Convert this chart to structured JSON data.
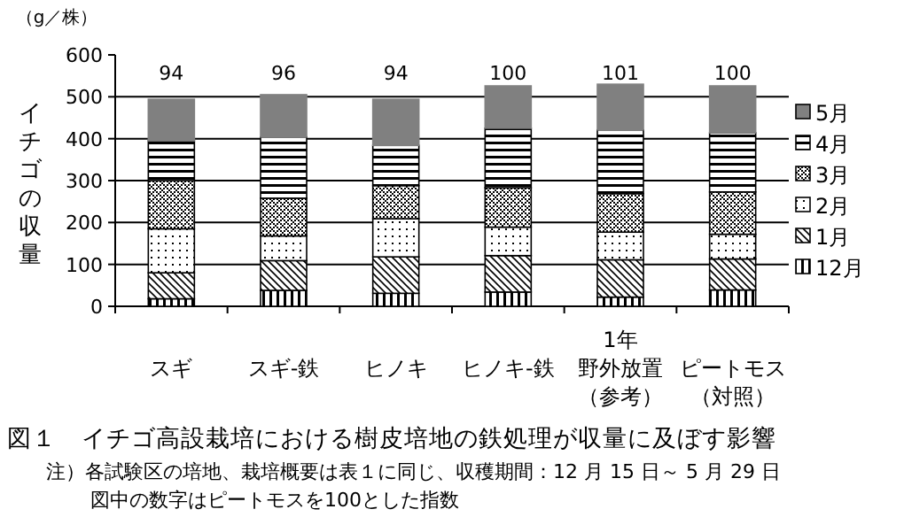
{
  "chart_data": {
    "type": "bar",
    "stacked": true,
    "title": "図１　イチゴ高設栽培における樹皮培地の鉄処理が収量に及ぼす影響",
    "ylabel": "イチゴの収量",
    "categories": [
      "スギ",
      "スギ-鉄",
      "ヒノキ",
      "ヒノキ-鉄",
      "1年野外放置（参考）",
      "ピートモス（対照）"
    ],
    "series": [
      {
        "name": "12月",
        "color": "#000000",
        "values": [
          18,
          38,
          31,
          34,
          22,
          39
        ]
      },
      {
        "name": "1月",
        "color": "#000000",
        "values": [
          62,
          71,
          87,
          87,
          89,
          74
        ]
      },
      {
        "name": "2月",
        "color": "#000000",
        "values": [
          105,
          59,
          91,
          68,
          66,
          59
        ]
      },
      {
        "name": "3月",
        "color": "#000000",
        "values": [
          115,
          90,
          79,
          94,
          92,
          101
        ]
      },
      {
        "name": "4月",
        "color": "#000000",
        "values": [
          95,
          146,
          96,
          142,
          152,
          141
        ]
      },
      {
        "name": "5月",
        "color": "#808080",
        "values": [
          99,
          101,
          110,
          101,
          109,
          112
        ]
      }
    ],
    "ylim": [
      0,
      600
    ],
    "yticks": [
      0,
      100,
      200,
      300,
      400,
      500,
      600
    ],
    "grid": "y",
    "legend": "right",
    "annotations": [
      "（g／株）",
      "94",
      "96",
      "94",
      "100",
      "101",
      "100",
      "注）各試験区の培地、栽培概要は表１に同じ、収穫期間：12 月 15 日～ 5 月 29 日",
      "図中の数字はピートモスを100とした指数"
    ]
  }
}
